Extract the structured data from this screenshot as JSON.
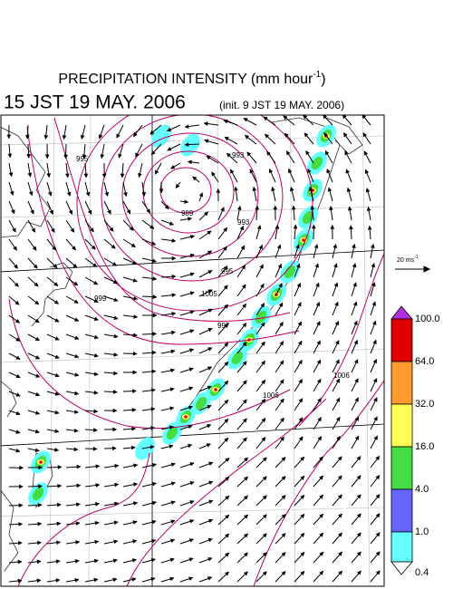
{
  "header": {
    "title": "PRECIPITATION INTENSITY (mm hour",
    "title_sup": "-1",
    "title_end": ")",
    "time": "15 JST 19 MAY. 2006",
    "init": "(init. 9 JST 19 MAY. 2006)"
  },
  "reference_vector": {
    "label": "20 ms",
    "label_sup": "-1"
  },
  "isobar_labels": [
    "989",
    "993",
    "993",
    "995",
    "995",
    "1005",
    "997",
    "999",
    "1006",
    "1006"
  ],
  "colorbar": {
    "labels": [
      "100.0",
      "64.0",
      "32.0",
      "16.0",
      "4.0",
      "1.0",
      "0.4"
    ]
  }
}
